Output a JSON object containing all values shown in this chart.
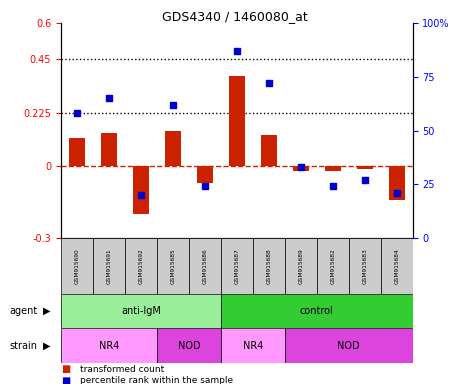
{
  "title": "GDS4340 / 1460080_at",
  "samples": [
    "GSM915690",
    "GSM915691",
    "GSM915692",
    "GSM915685",
    "GSM915686",
    "GSM915687",
    "GSM915688",
    "GSM915689",
    "GSM915682",
    "GSM915683",
    "GSM915684"
  ],
  "transformed_count": [
    0.12,
    0.14,
    -0.2,
    0.15,
    -0.07,
    0.38,
    0.13,
    -0.02,
    -0.02,
    -0.01,
    -0.14
  ],
  "percentile_rank_pct": [
    58,
    65,
    20,
    62,
    24,
    87,
    72,
    33,
    24,
    27,
    21
  ],
  "ylim_left": [
    -0.3,
    0.6
  ],
  "ylim_right": [
    0,
    100
  ],
  "yticks_left": [
    -0.3,
    0,
    0.225,
    0.45,
    0.6
  ],
  "yticks_right": [
    0,
    25,
    50,
    75,
    100
  ],
  "hlines": [
    0.225,
    0.45
  ],
  "agent_groups": [
    {
      "label": "anti-IgM",
      "start": 0,
      "end": 5,
      "color": "#99EE99"
    },
    {
      "label": "control",
      "start": 5,
      "end": 11,
      "color": "#33CC33"
    }
  ],
  "strain_groups": [
    {
      "label": "NR4",
      "start": 0,
      "end": 3,
      "color": "#FF99FF"
    },
    {
      "label": "NOD",
      "start": 3,
      "end": 5,
      "color": "#DD44DD"
    },
    {
      "label": "NR4",
      "start": 5,
      "end": 7,
      "color": "#FF99FF"
    },
    {
      "label": "NOD",
      "start": 7,
      "end": 11,
      "color": "#DD44DD"
    }
  ],
  "bar_color": "#CC2200",
  "dot_color": "#0000CC",
  "bar_width": 0.5,
  "dot_size": 25,
  "legend_items": [
    "transformed count",
    "percentile rank within the sample"
  ],
  "legend_colors": [
    "#CC2200",
    "#0000CC"
  ],
  "zero_line_color": "#CC2200",
  "sample_box_color": "#CCCCCC",
  "fig_width": 4.69,
  "fig_height": 3.84,
  "dpi": 100
}
